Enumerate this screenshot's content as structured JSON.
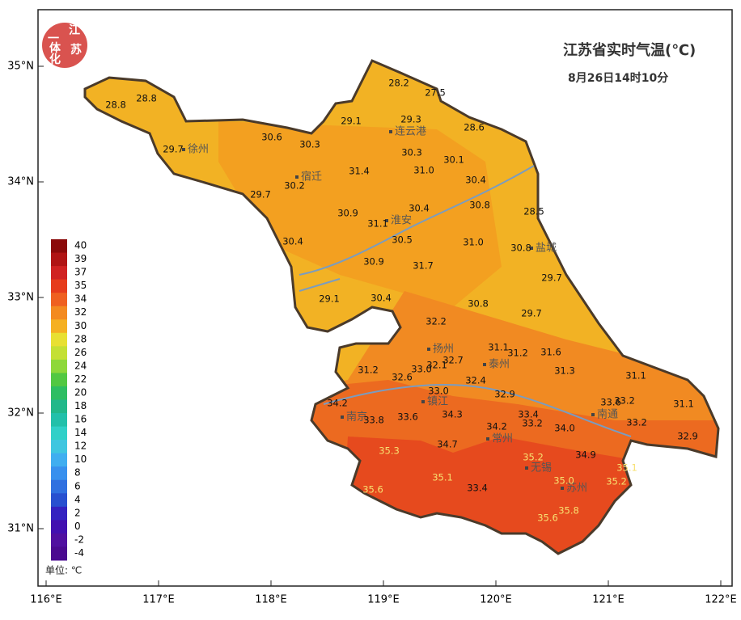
{
  "header": {
    "title": "江苏省实时气温(℃)",
    "subtitle": "8月26日14时10分",
    "logo": [
      "江",
      "苏",
      "一",
      "体",
      "化"
    ]
  },
  "map": {
    "lon_ticks": [
      "116°E",
      "117°E",
      "118°E",
      "119°E",
      "120°E",
      "121°E",
      "122°E"
    ],
    "lat_ticks": [
      "35°N",
      "34°N",
      "33°N",
      "32°N",
      "31°N"
    ],
    "cities": [
      "徐州",
      "连云港",
      "宿迁",
      "淮安",
      "盐城",
      "扬州",
      "泰州",
      "镇江",
      "南京",
      "常州",
      "无锡",
      "苏州",
      "南通"
    ],
    "stations": [
      "28.8",
      "28.8",
      "28.2",
      "27.5",
      "29.1",
      "29.3",
      "28.6",
      "30.6",
      "30.3",
      "29.7",
      "30.3",
      "30.1",
      "31.4",
      "31.0",
      "30.4",
      "30.2",
      "29.7",
      "30.4",
      "30.8",
      "28.5",
      "30.9",
      "31.1",
      "30.5",
      "31.0",
      "30.8",
      "30.4",
      "30.9",
      "31.7",
      "29.7",
      "29.1",
      "30.4",
      "30.8",
      "29.7",
      "32.2",
      "31.1",
      "31.2",
      "31.6",
      "32.7",
      "31.2",
      "32.6",
      "33.0",
      "32.1",
      "31.3",
      "31.1",
      "32.4",
      "33.0",
      "32.9",
      "34.2",
      "33.6",
      "33.2",
      "31.1",
      "33.8",
      "33.6",
      "34.3",
      "33.4",
      "33.2",
      "34.2",
      "34.0",
      "33.2",
      "32.9",
      "34.7",
      "35.3",
      "34.9",
      "35.1",
      "35.2",
      "35.1",
      "35.0",
      "35.2",
      "33.4",
      "35.6",
      "35.8",
      "35.6"
    ]
  },
  "legend": {
    "ticks": [
      40,
      39,
      37,
      35,
      34,
      32,
      30,
      28,
      26,
      24,
      22,
      20,
      18,
      16,
      14,
      12,
      10,
      8,
      6,
      4,
      2,
      0,
      -2,
      -4
    ],
    "colors": [
      "#8b0a0a",
      "#b01414",
      "#d02222",
      "#e63c1c",
      "#ef6020",
      "#f38a20",
      "#f5b022",
      "#e8e032",
      "#c4e034",
      "#8ed83a",
      "#52c842",
      "#2ebe62",
      "#22b88a",
      "#22c0aa",
      "#30d0c8",
      "#40c6e0",
      "#40aef0",
      "#3890ee",
      "#3070e0",
      "#2850d0",
      "#3422c0",
      "#4210b0",
      "#5010a0",
      "#4a0a90"
    ],
    "unit": "单位: ℃"
  }
}
